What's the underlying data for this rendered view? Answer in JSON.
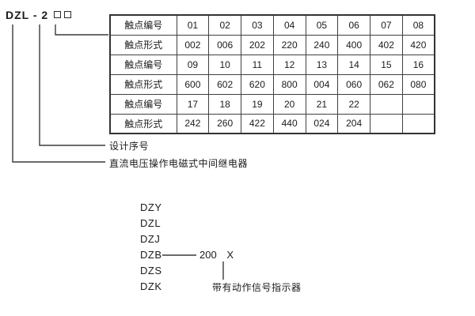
{
  "model_code": {
    "prefix": "DZL - 2"
  },
  "contact_table": {
    "rows": [
      {
        "label": "触点编号",
        "values": [
          "01",
          "02",
          "03",
          "04",
          "05",
          "06",
          "07",
          "08"
        ]
      },
      {
        "label": "触点形式",
        "values": [
          "002",
          "006",
          "202",
          "220",
          "240",
          "400",
          "402",
          "420"
        ]
      },
      {
        "label": "触点编号",
        "values": [
          "09",
          "10",
          "11",
          "12",
          "13",
          "14",
          "15",
          "16"
        ]
      },
      {
        "label": "触点形式",
        "values": [
          "600",
          "602",
          "620",
          "800",
          "004",
          "060",
          "062",
          "080"
        ]
      },
      {
        "label": "触点编号",
        "values": [
          "17",
          "18",
          "19",
          "20",
          "21",
          "22",
          "",
          ""
        ]
      },
      {
        "label": "触点形式",
        "values": [
          "242",
          "260",
          "422",
          "440",
          "024",
          "204",
          "",
          ""
        ]
      }
    ]
  },
  "callouts": {
    "design_serial_label": "设计序号",
    "relay_type_label": "直流电压操作电磁式中间继电器"
  },
  "series_list": {
    "models": [
      "DZY",
      "DZL",
      "DZJ",
      "DZB",
      "DZS",
      "DZK"
    ],
    "rating_code": "200",
    "variant_code": "X",
    "indicator_label": "带有动作信号指示器"
  },
  "colors": {
    "line": "#3a3a3a",
    "text": "#1c1c1c",
    "table_border": "#333333",
    "background": "#ffffff"
  }
}
